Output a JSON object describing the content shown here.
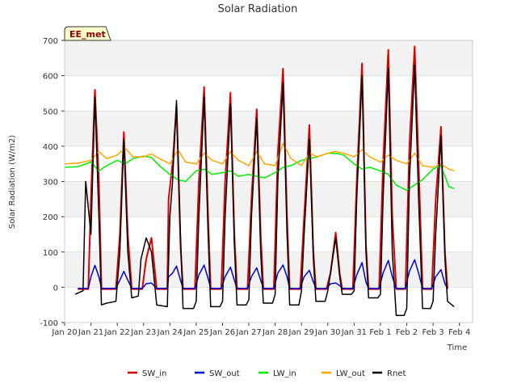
{
  "chart_data": {
    "type": "line",
    "title": "Solar Radiation",
    "xlabel": "Time",
    "ylabel": "Solar Radiation (W/m2)",
    "badge": "EE_met",
    "ylim": [
      -100,
      700
    ],
    "xlim": [
      0,
      15.5
    ],
    "yticks": [
      -100,
      0,
      100,
      200,
      300,
      400,
      500,
      600,
      700
    ],
    "xtick_labels": [
      "Jan 20",
      "Jan 21",
      "Jan 22",
      "Jan 23",
      "Jan 24",
      "Jan 25",
      "Jan 26",
      "Jan 27",
      "Jan 28",
      "Jan 29",
      "Jan 30",
      "Jan 31",
      "Feb 1",
      "Feb 2",
      "Feb 3",
      "Feb 4"
    ],
    "grid": "horizontal bands",
    "legend_position": "bottom",
    "series": [
      {
        "name": "SW_in",
        "color": "#dd0000",
        "x": [
          0.5,
          0.9,
          1.0,
          1.15,
          1.3,
          1.4,
          1.5,
          1.95,
          2.1,
          2.25,
          2.4,
          2.55,
          2.95,
          3.1,
          3.3,
          3.5,
          3.9,
          3.95,
          4.1,
          4.25,
          4.4,
          4.5,
          4.95,
          5.1,
          5.3,
          5.45,
          5.55,
          5.95,
          6.1,
          6.3,
          6.45,
          6.55,
          6.95,
          7.1,
          7.3,
          7.45,
          7.55,
          7.95,
          8.1,
          8.3,
          8.45,
          8.55,
          8.95,
          9.1,
          9.3,
          9.45,
          9.55,
          9.95,
          10.1,
          10.3,
          10.45,
          10.55,
          10.95,
          11.1,
          11.3,
          11.45,
          11.55,
          11.95,
          12.1,
          12.3,
          12.45,
          12.6,
          12.95,
          13.1,
          13.3,
          13.45,
          13.6,
          13.95,
          14.1,
          14.3,
          14.45,
          14.55
        ],
        "y": [
          -5,
          -5,
          250,
          560,
          300,
          -5,
          -5,
          -5,
          150,
          440,
          150,
          -5,
          -5,
          80,
          140,
          -5,
          -5,
          250,
          350,
          515,
          120,
          -5,
          -5,
          300,
          568,
          200,
          -5,
          -5,
          300,
          552,
          150,
          -5,
          -5,
          250,
          505,
          150,
          -5,
          -5,
          380,
          620,
          200,
          -5,
          -5,
          200,
          460,
          100,
          -5,
          -5,
          40,
          155,
          40,
          -5,
          -5,
          300,
          635,
          120,
          -5,
          -5,
          350,
          673,
          200,
          -5,
          -5,
          400,
          683,
          350,
          -5,
          -5,
          250,
          455,
          100,
          -5
        ]
      },
      {
        "name": "SW_out",
        "color": "#0000dd",
        "x": [
          0.5,
          0.9,
          1.0,
          1.15,
          1.3,
          1.4,
          1.5,
          1.95,
          2.1,
          2.25,
          2.4,
          2.55,
          2.95,
          3.1,
          3.3,
          3.5,
          3.9,
          3.95,
          4.1,
          4.25,
          4.4,
          4.5,
          4.95,
          5.1,
          5.3,
          5.45,
          5.55,
          5.95,
          6.1,
          6.3,
          6.45,
          6.55,
          6.95,
          7.1,
          7.3,
          7.45,
          7.55,
          7.95,
          8.1,
          8.3,
          8.45,
          8.55,
          8.95,
          9.1,
          9.3,
          9.45,
          9.55,
          9.95,
          10.1,
          10.3,
          10.45,
          10.55,
          10.95,
          11.1,
          11.3,
          11.45,
          11.55,
          11.95,
          12.1,
          12.3,
          12.45,
          12.6,
          12.95,
          13.1,
          13.3,
          13.45,
          13.6,
          13.95,
          14.1,
          14.3,
          14.45,
          14.55
        ],
        "y": [
          -3,
          -3,
          30,
          62,
          30,
          -3,
          -3,
          -3,
          20,
          45,
          20,
          -3,
          -3,
          10,
          12,
          -3,
          -3,
          30,
          40,
          60,
          20,
          -3,
          -3,
          35,
          63,
          25,
          -3,
          -3,
          30,
          57,
          20,
          -3,
          -3,
          30,
          55,
          20,
          -3,
          -3,
          40,
          63,
          30,
          -3,
          -3,
          30,
          48,
          15,
          -3,
          -3,
          10,
          12,
          5,
          -3,
          -3,
          35,
          70,
          15,
          -3,
          -3,
          40,
          76,
          30,
          -3,
          -3,
          45,
          78,
          40,
          -3,
          -3,
          30,
          50,
          10,
          -3
        ]
      },
      {
        "name": "LW_in",
        "color": "#00ee00",
        "x": [
          0,
          0.5,
          1.0,
          1.3,
          1.6,
          2.0,
          2.3,
          2.6,
          3.0,
          3.3,
          3.6,
          4.0,
          4.3,
          4.6,
          5.0,
          5.3,
          5.6,
          6.0,
          6.3,
          6.6,
          7.0,
          7.3,
          7.6,
          8.0,
          8.3,
          8.6,
          9.0,
          9.3,
          9.6,
          10.0,
          10.3,
          10.6,
          11.0,
          11.3,
          11.6,
          12.0,
          12.3,
          12.6,
          13.0,
          13.3,
          13.6,
          14.0,
          14.3,
          14.6,
          14.8
        ],
        "y": [
          340,
          342,
          355,
          330,
          345,
          360,
          350,
          365,
          372,
          368,
          345,
          320,
          305,
          300,
          330,
          335,
          320,
          325,
          330,
          315,
          320,
          315,
          310,
          325,
          340,
          345,
          360,
          365,
          370,
          380,
          380,
          375,
          350,
          335,
          340,
          330,
          320,
          290,
          275,
          290,
          305,
          335,
          345,
          285,
          280
        ]
      },
      {
        "name": "LW_out",
        "color": "#ffa500",
        "x": [
          0,
          0.5,
          1.0,
          1.3,
          1.6,
          2.0,
          2.3,
          2.6,
          3.0,
          3.3,
          3.6,
          4.0,
          4.3,
          4.6,
          5.0,
          5.3,
          5.6,
          6.0,
          6.3,
          6.6,
          7.0,
          7.3,
          7.6,
          8.0,
          8.3,
          8.6,
          9.0,
          9.3,
          9.6,
          10.0,
          10.3,
          10.6,
          11.0,
          11.3,
          11.6,
          12.0,
          12.3,
          12.6,
          13.0,
          13.3,
          13.6,
          14.0,
          14.3,
          14.6,
          14.8
        ],
        "y": [
          350,
          352,
          360,
          385,
          365,
          375,
          395,
          370,
          370,
          378,
          365,
          350,
          390,
          355,
          350,
          380,
          360,
          350,
          385,
          360,
          345,
          385,
          350,
          345,
          408,
          365,
          345,
          380,
          370,
          380,
          385,
          380,
          370,
          390,
          370,
          355,
          375,
          360,
          350,
          380,
          345,
          340,
          350,
          335,
          330
        ]
      },
      {
        "name": "Rnet",
        "color": "#000000",
        "x": [
          0.4,
          0.7,
          0.8,
          1.0,
          1.15,
          1.3,
          1.4,
          1.6,
          1.95,
          2.1,
          2.25,
          2.4,
          2.55,
          2.8,
          2.9,
          3.1,
          3.3,
          3.5,
          3.9,
          4.0,
          4.1,
          4.25,
          4.4,
          4.5,
          4.9,
          5.0,
          5.1,
          5.3,
          5.45,
          5.55,
          5.9,
          6.0,
          6.1,
          6.3,
          6.45,
          6.55,
          6.9,
          7.0,
          7.1,
          7.3,
          7.45,
          7.55,
          7.9,
          8.0,
          8.1,
          8.3,
          8.45,
          8.55,
          8.9,
          9.0,
          9.1,
          9.3,
          9.45,
          9.55,
          9.9,
          10.0,
          10.1,
          10.3,
          10.45,
          10.55,
          10.9,
          11.0,
          11.1,
          11.3,
          11.45,
          11.55,
          11.9,
          12.0,
          12.1,
          12.3,
          12.45,
          12.6,
          12.9,
          13.0,
          13.1,
          13.3,
          13.45,
          13.6,
          13.9,
          14.0,
          14.1,
          14.3,
          14.45,
          14.55,
          14.8
        ],
        "y": [
          -20,
          -10,
          300,
          150,
          540,
          200,
          -50,
          -45,
          -40,
          100,
          420,
          100,
          -30,
          -25,
          80,
          140,
          100,
          -50,
          -55,
          200,
          300,
          530,
          150,
          -60,
          -60,
          -40,
          200,
          540,
          150,
          -55,
          -55,
          -40,
          200,
          520,
          120,
          -50,
          -50,
          -35,
          200,
          480,
          100,
          -45,
          -45,
          -20,
          300,
          580,
          150,
          -50,
          -50,
          -10,
          150,
          420,
          80,
          -40,
          -40,
          -10,
          40,
          140,
          30,
          -20,
          -20,
          -10,
          250,
          600,
          100,
          -30,
          -30,
          -20,
          250,
          620,
          100,
          -80,
          -80,
          -60,
          300,
          630,
          250,
          -60,
          -60,
          -40,
          150,
          430,
          80,
          -40,
          -55
        ]
      }
    ]
  }
}
